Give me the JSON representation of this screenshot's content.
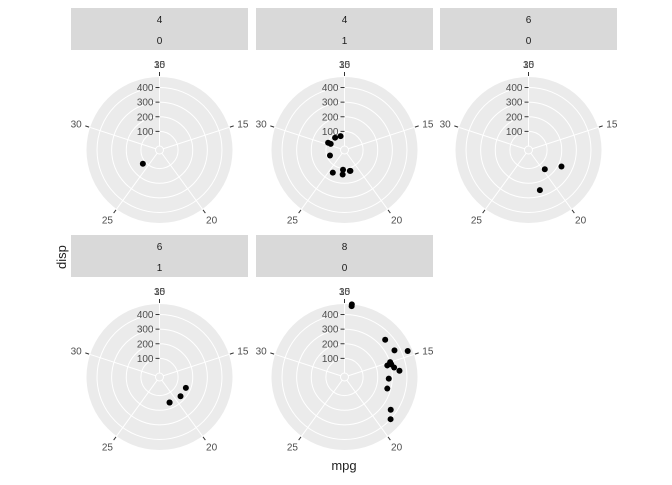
{
  "chart_data": {
    "type": "scatter",
    "coord": "polar",
    "xlabel": "mpg",
    "ylabel": "disp",
    "theta_range": [
      10,
      35
    ],
    "theta_ticks": [
      "10",
      "15",
      "20",
      "25",
      "30",
      "35"
    ],
    "r_range": [
      0,
      472
    ],
    "r_ticks": [
      "100",
      "200",
      "300",
      "400"
    ],
    "grid": true,
    "background": "#ebebeb",
    "strip_fill": "#d9d9d9",
    "point_color": "#000000",
    "panels": [
      {
        "strip": [
          "4",
          "0"
        ],
        "points": [
          [
            26.0,
            120.3
          ]
        ]
      },
      {
        "strip": [
          "4",
          "1"
        ],
        "points": [
          [
            22.8,
            108.0
          ],
          [
            24.4,
            146.7
          ],
          [
            22.8,
            140.8
          ],
          [
            32.4,
            78.7
          ],
          [
            30.4,
            75.7
          ],
          [
            33.9,
            71.1
          ],
          [
            21.5,
            120.1
          ],
          [
            27.3,
            79.0
          ],
          [
            30.4,
            95.1
          ],
          [
            21.4,
            121.0
          ]
        ]
      },
      {
        "strip": [
          "6",
          "0"
        ],
        "points": [
          [
            21.4,
            258.0
          ],
          [
            18.1,
            225.0
          ],
          [
            19.7,
            145.0
          ]
        ]
      },
      {
        "strip": [
          "6",
          "1"
        ],
        "points": [
          [
            21.0,
            160.0
          ],
          [
            21.0,
            160.0
          ],
          [
            19.2,
            167.6
          ],
          [
            17.8,
            167.6
          ]
        ]
      },
      {
        "strip": [
          "8",
          "0"
        ],
        "points": [
          [
            18.7,
            360.0
          ],
          [
            14.3,
            360.0
          ],
          [
            16.4,
            275.8
          ],
          [
            17.3,
            275.8
          ],
          [
            15.2,
            275.8
          ],
          [
            10.4,
            472.0
          ],
          [
            10.4,
            460.0
          ],
          [
            14.7,
            440.0
          ],
          [
            15.5,
            318.0
          ],
          [
            15.2,
            304.0
          ],
          [
            13.3,
            350.0
          ],
          [
            19.2,
            400.0
          ],
          [
            15.8,
            351.0
          ],
          [
            15.0,
            301.0
          ]
        ]
      }
    ]
  }
}
